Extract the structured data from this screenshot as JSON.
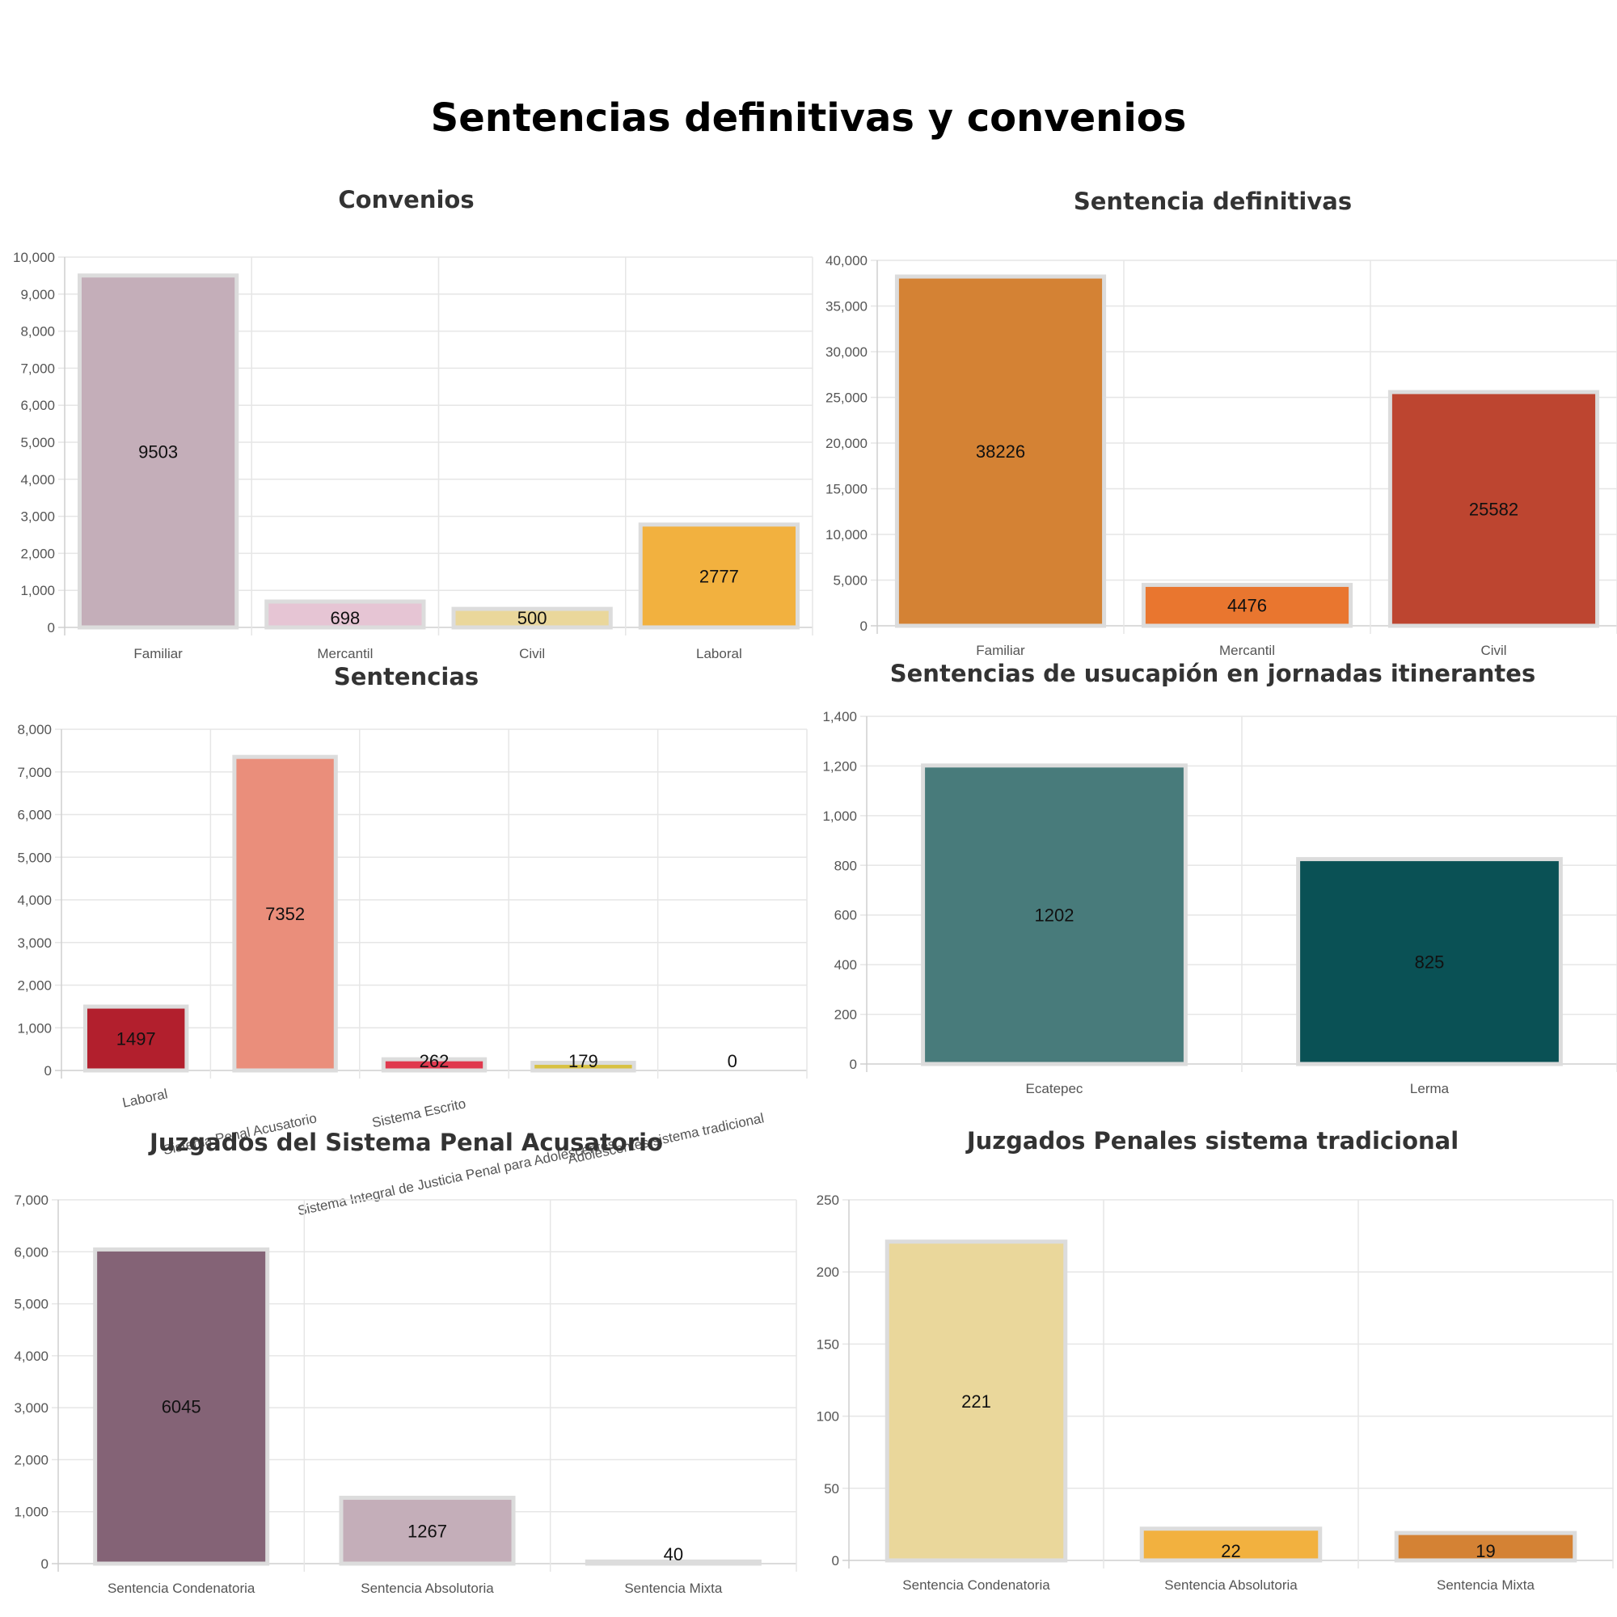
{
  "page": {
    "title": "Sentencias definitivas y convenios"
  },
  "chart_data": [
    {
      "id": "convenios",
      "type": "bar",
      "title": "Convenios",
      "categories": [
        "Familiar",
        "Mercantil",
        "Civil",
        "Laboral"
      ],
      "values": [
        9503,
        698,
        500,
        2777
      ],
      "colors": [
        "#c4aeb9",
        "#e6c5d4",
        "#ead79b",
        "#f2b13f"
      ],
      "ylim": [
        0,
        10000
      ],
      "yticks": [
        0,
        1000,
        2000,
        3000,
        4000,
        5000,
        6000,
        7000,
        8000,
        9000,
        10000
      ],
      "ytick_labels": [
        "0",
        "1,000",
        "2,000",
        "3,000",
        "4,000",
        "5,000",
        "6,000",
        "7,000",
        "8,000",
        "9,000",
        "10,000"
      ],
      "grid": true,
      "value_labels": [
        "9503",
        "698",
        "500",
        "2777"
      ]
    },
    {
      "id": "sentencia-definitivas",
      "type": "bar",
      "title": "Sentencia definitivas",
      "categories": [
        "Familiar",
        "Mercantil",
        "Civil"
      ],
      "values": [
        38226,
        4476,
        25582
      ],
      "colors": [
        "#d48234",
        "#e9762f",
        "#bd4530"
      ],
      "ylim": [
        0,
        40000
      ],
      "yticks": [
        0,
        5000,
        10000,
        15000,
        20000,
        25000,
        30000,
        35000,
        40000
      ],
      "ytick_labels": [
        "0",
        "5,000",
        "10,000",
        "15,000",
        "20,000",
        "25,000",
        "30,000",
        "35,000",
        "40,000"
      ],
      "grid": true,
      "value_labels": [
        "38226",
        "4476",
        "25582"
      ]
    },
    {
      "id": "sentencias",
      "type": "bar",
      "title": "Sentencias",
      "categories": [
        "Laboral",
        "Sistema Penal Acusatorio",
        "Sistema Escrito",
        "Sistema Integral de Justicia Penal para Adolescentes",
        "Adolescentes sistema tradicional"
      ],
      "values": [
        1497,
        7352,
        262,
        179,
        0
      ],
      "colors": [
        "#b21f2d",
        "#ea8e7b",
        "#e0394e",
        "#d8c142",
        "#f0a040"
      ],
      "ylim": [
        0,
        8000
      ],
      "yticks": [
        0,
        1000,
        2000,
        3000,
        4000,
        5000,
        6000,
        7000,
        8000
      ],
      "ytick_labels": [
        "0",
        "1,000",
        "2,000",
        "3,000",
        "4,000",
        "5,000",
        "6,000",
        "7,000",
        "8,000"
      ],
      "grid": true,
      "value_labels": [
        "1497",
        "7352",
        "262",
        "179",
        "0"
      ]
    },
    {
      "id": "usucapion",
      "type": "bar",
      "title": "Sentencias de usucapión en jornadas itinerantes",
      "categories": [
        "Ecatepec",
        "Lerma"
      ],
      "values": [
        1202,
        825
      ],
      "colors": [
        "#487b7b",
        "#0a5155"
      ],
      "ylim": [
        0,
        1400
      ],
      "yticks": [
        0,
        200,
        400,
        600,
        800,
        1000,
        1200,
        1400
      ],
      "ytick_labels": [
        "0",
        "200",
        "400",
        "600",
        "800",
        "1,000",
        "1,200",
        "1,400"
      ],
      "grid": true,
      "value_labels": [
        "1202",
        "825"
      ]
    },
    {
      "id": "penal-acusatorio",
      "type": "bar",
      "title": "Juzgados del Sistema Penal Acusatorio",
      "categories": [
        "Sentencia Condenatoria",
        "Sentencia Absolutoria",
        "Sentencia Mixta"
      ],
      "values": [
        6045,
        1267,
        40
      ],
      "colors": [
        "#846376",
        "#c4aeb9",
        "#e6c5d4"
      ],
      "ylim": [
        0,
        7000
      ],
      "yticks": [
        0,
        1000,
        2000,
        3000,
        4000,
        5000,
        6000,
        7000
      ],
      "ytick_labels": [
        "0",
        "1,000",
        "2,000",
        "3,000",
        "4,000",
        "5,000",
        "6,000",
        "7,000"
      ],
      "grid": true,
      "value_labels": [
        "6045",
        "1267",
        "40"
      ]
    },
    {
      "id": "penales-tradicional",
      "type": "bar",
      "title": "Juzgados Penales sistema tradicional",
      "categories": [
        "Sentencia Condenatoria",
        "Sentencia Absolutoria",
        "Sentencia Mixta"
      ],
      "values": [
        221,
        22,
        19
      ],
      "colors": [
        "#ead79b",
        "#f2b13f",
        "#d48234"
      ],
      "ylim": [
        0,
        250
      ],
      "yticks": [
        0,
        50,
        100,
        150,
        200,
        250
      ],
      "ytick_labels": [
        "0",
        "50",
        "100",
        "150",
        "200",
        "250"
      ],
      "grid": true,
      "value_labels": [
        "221",
        "22",
        "19"
      ]
    }
  ]
}
